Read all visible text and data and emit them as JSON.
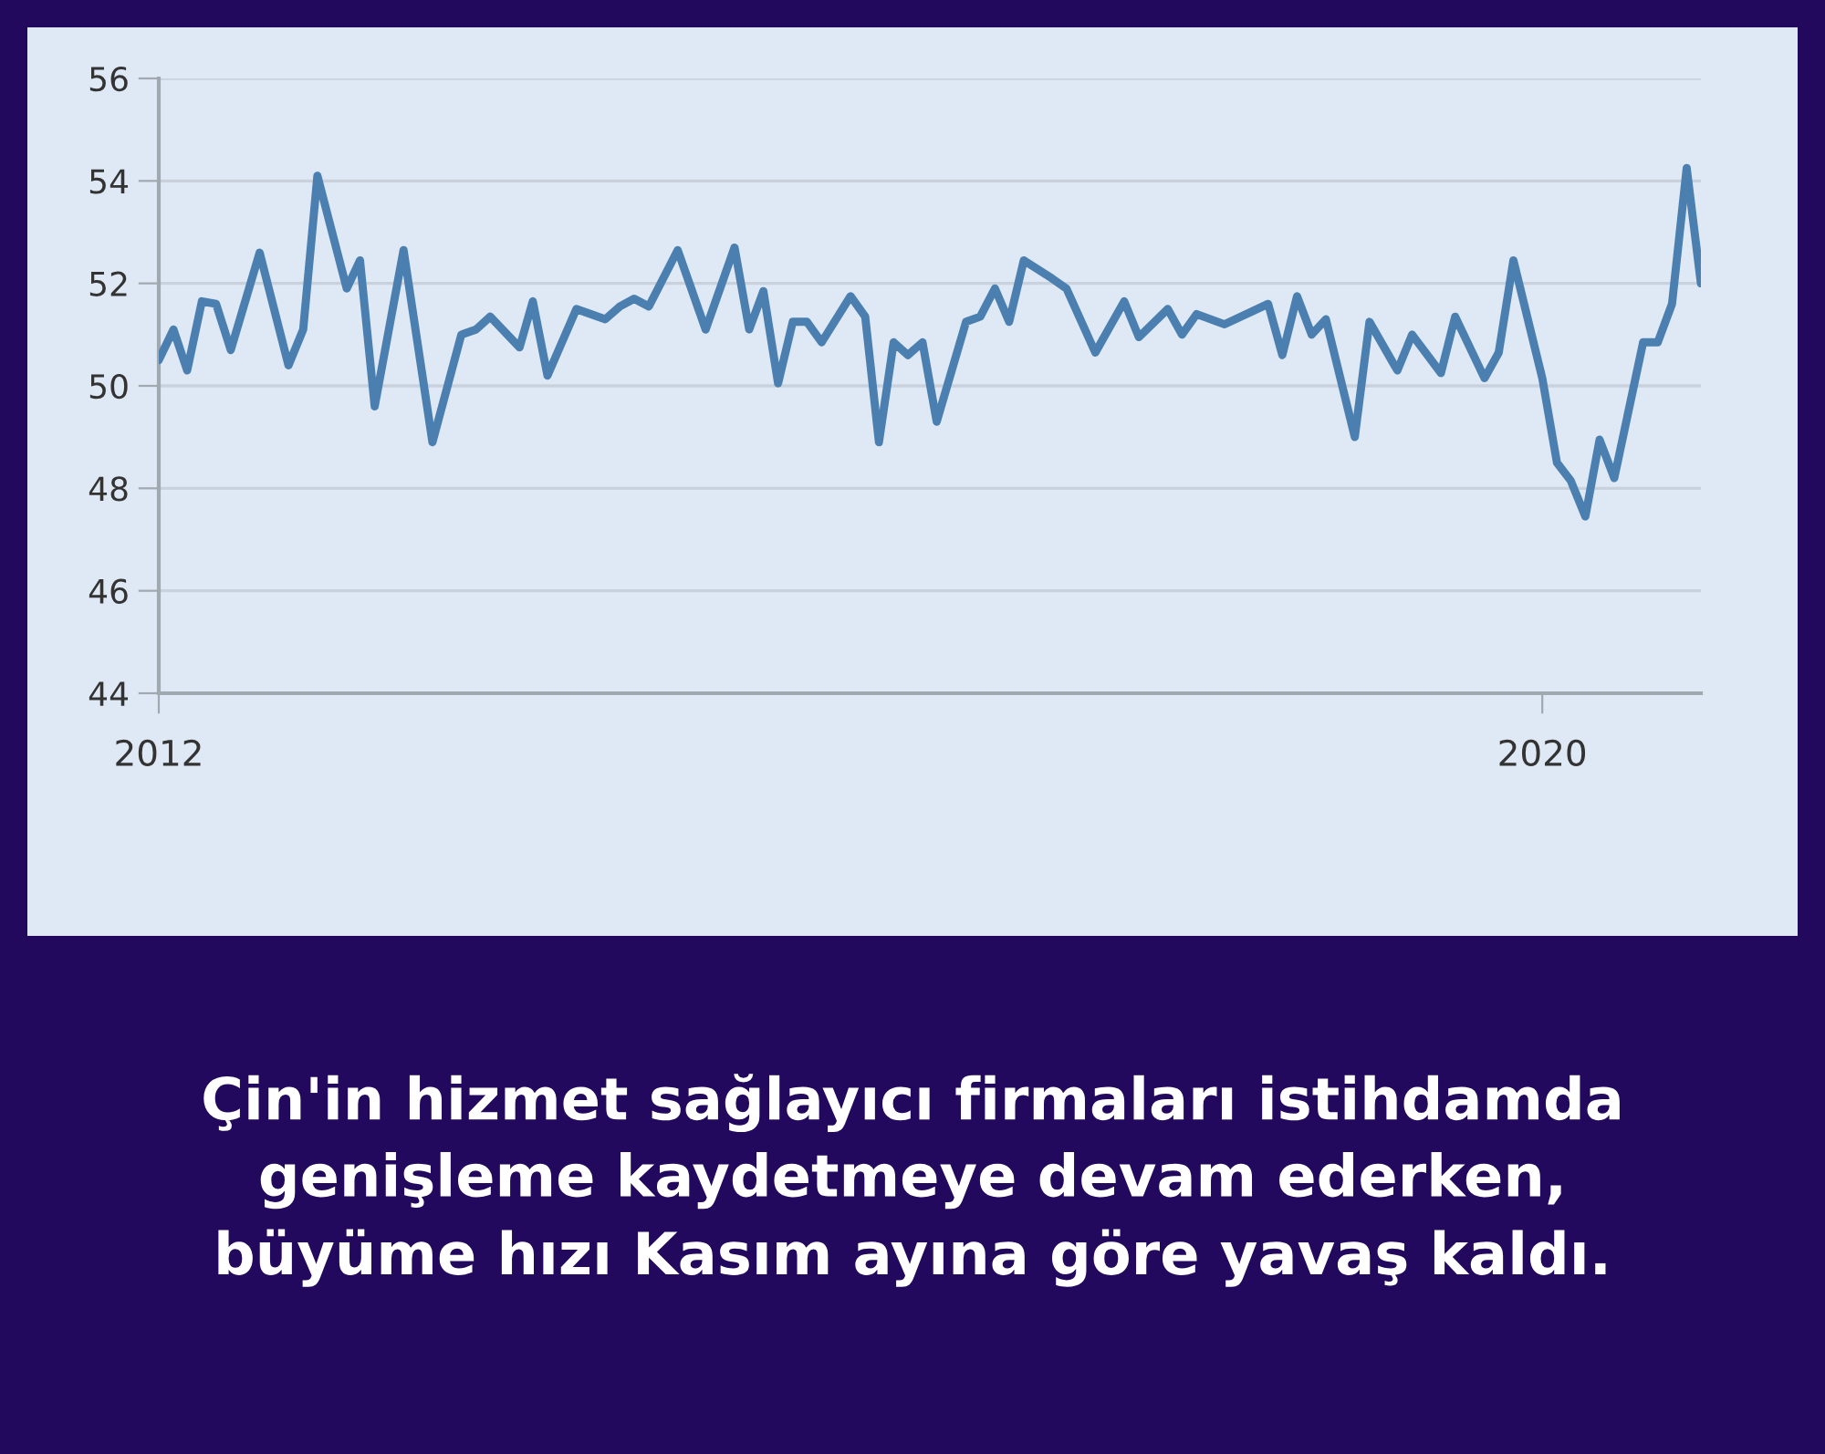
{
  "chart_data": {
    "type": "line",
    "title": "Çin'in hizmet sağlayıcı firmaları istihdamda\ngenişleme kaydetmeye devam ederken,\nbüyüme hızı Kasım ayına göre yavaş kaldı.",
    "x": [
      "2012-01",
      "2012-02",
      "2012-03",
      "2012-04",
      "2012-05",
      "2012-06",
      "2012-08",
      "2012-10",
      "2012-11",
      "2012-12",
      "2013-02",
      "2013-03",
      "2013-04",
      "2013-06",
      "2013-08",
      "2013-10",
      "2013-11",
      "2013-12",
      "2014-02",
      "2014-03",
      "2014-04",
      "2014-06",
      "2014-08",
      "2014-09",
      "2014-10",
      "2014-11",
      "2015-01",
      "2015-03",
      "2015-05",
      "2015-06",
      "2015-07",
      "2015-08",
      "2015-09",
      "2015-10",
      "2015-11",
      "2016-01",
      "2016-02",
      "2016-03",
      "2016-04",
      "2016-05",
      "2016-06",
      "2016-07",
      "2016-09",
      "2016-10",
      "2016-11",
      "2016-12",
      "2017-01",
      "2017-03",
      "2017-04",
      "2017-06",
      "2017-08",
      "2017-09",
      "2017-11",
      "2017-12",
      "2018-01",
      "2018-03",
      "2018-06",
      "2018-07",
      "2018-08",
      "2018-09",
      "2018-10",
      "2018-12",
      "2019-01",
      "2019-03",
      "2019-04",
      "2019-06",
      "2019-07",
      "2019-09",
      "2019-10",
      "2019-11",
      "2020-01",
      "2020-02",
      "2020-03",
      "2020-04",
      "2020-05",
      "2020-06",
      "2020-08",
      "2020-09",
      "2020-10",
      "2020-11",
      "2020-12"
    ],
    "series": [
      {
        "color": "#4a7fb0",
        "values": [
          50.5,
          51.1,
          50.3,
          51.65,
          51.6,
          50.7,
          52.6,
          50.4,
          51.1,
          54.1,
          51.9,
          52.45,
          49.6,
          52.65,
          48.9,
          51.0,
          51.1,
          51.35,
          50.75,
          51.65,
          50.2,
          51.5,
          51.3,
          51.55,
          51.7,
          51.55,
          52.65,
          51.1,
          52.7,
          51.1,
          51.85,
          50.05,
          51.25,
          51.25,
          50.85,
          51.75,
          51.35,
          48.9,
          50.85,
          50.6,
          50.85,
          49.3,
          51.25,
          51.35,
          51.9,
          51.25,
          52.45,
          52.1,
          51.9,
          50.65,
          51.65,
          50.95,
          51.5,
          51.0,
          51.4,
          51.2,
          51.6,
          50.6,
          51.75,
          51.0,
          51.3,
          49.0,
          51.25,
          50.3,
          51.0,
          50.25,
          51.35,
          50.15,
          50.65,
          52.45,
          50.15,
          48.5,
          48.15,
          47.45,
          48.95,
          48.2,
          50.85,
          50.85,
          51.6,
          54.25,
          52.0
        ]
      }
    ],
    "xlim": [
      "2012-01",
      "2020-12"
    ],
    "xticks": [
      {
        "value": "2012-01",
        "label": "2012"
      },
      {
        "value": "2020-01",
        "label": "2020"
      }
    ],
    "ylim": [
      44,
      56
    ],
    "yticks": [
      44,
      46,
      48,
      50,
      52,
      54,
      56
    ],
    "grid": "y",
    "line_style": "solid"
  }
}
